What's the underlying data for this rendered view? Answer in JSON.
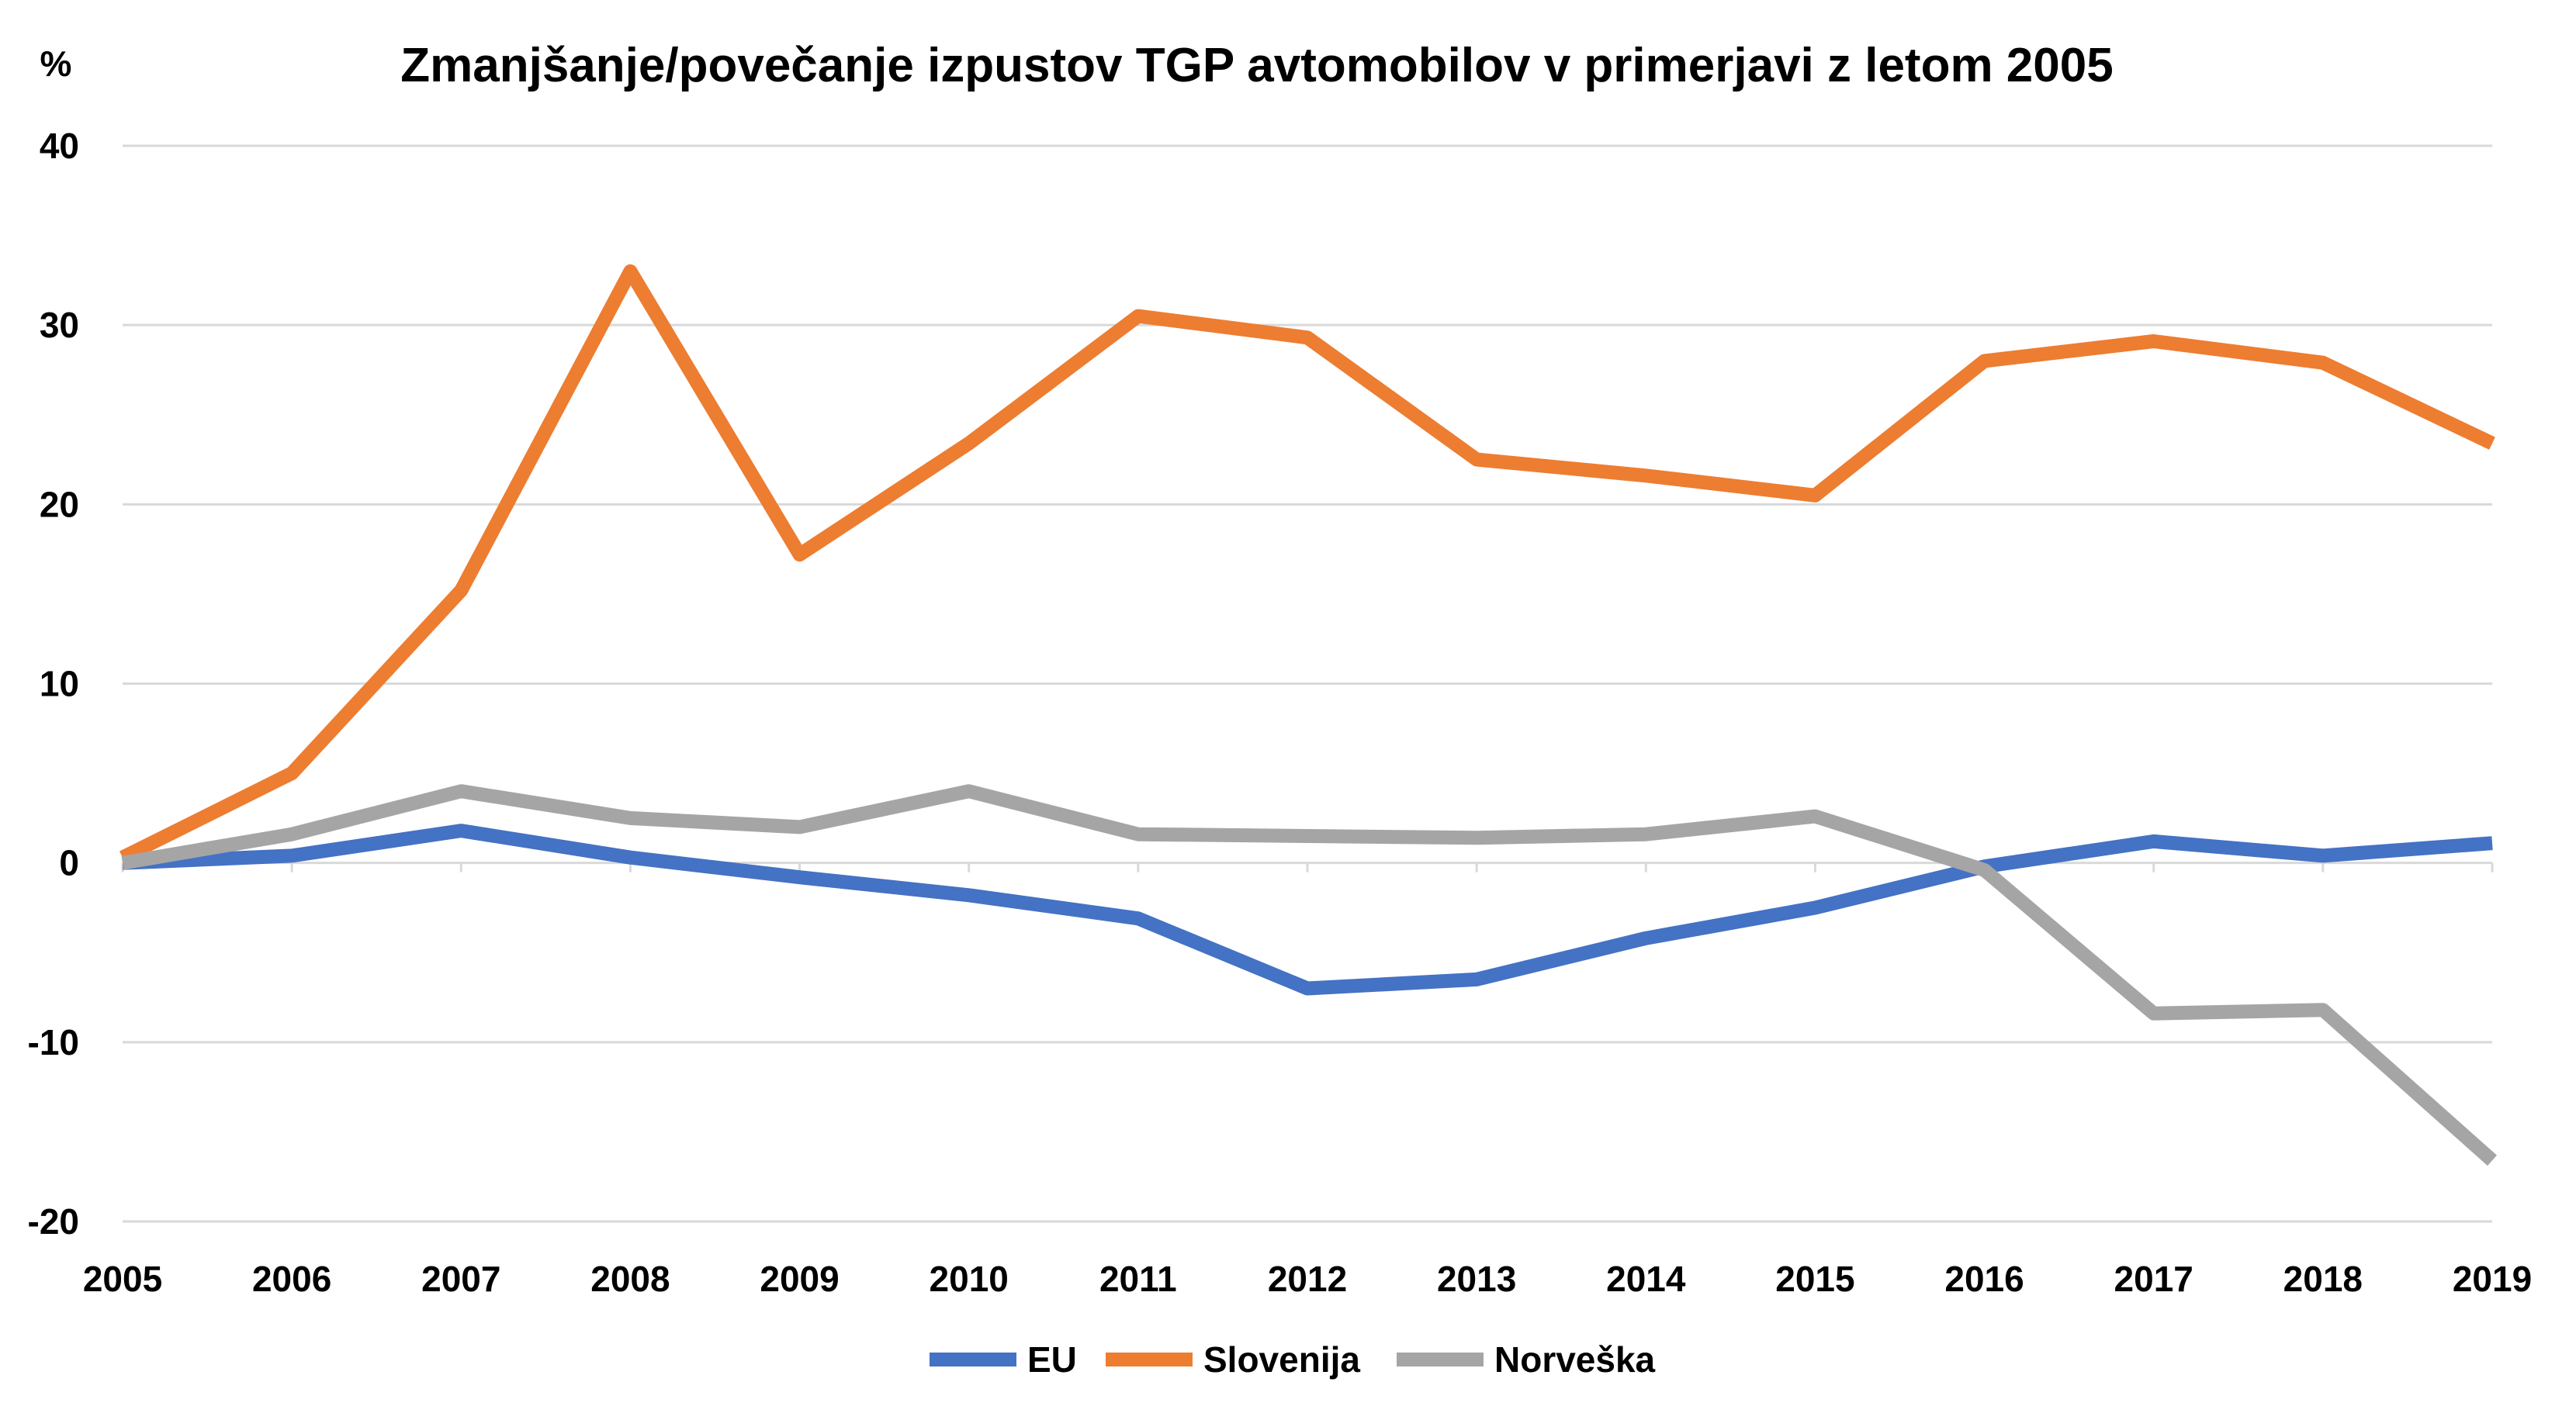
{
  "chart_data": {
    "type": "line",
    "title": "Zmanjšanje/povečanje izpustov TGP avtomobilov v primerjavi z letom 2005",
    "ylabel": "%",
    "xlabel": "",
    "x": [
      "2005",
      "2006",
      "2007",
      "2008",
      "2009",
      "2010",
      "2011",
      "2012",
      "2013",
      "2014",
      "2015",
      "2016",
      "2017",
      "2018",
      "2019"
    ],
    "ylim": [
      -20,
      40
    ],
    "yticks": [
      -20,
      -10,
      0,
      10,
      20,
      30,
      40
    ],
    "ytick_labels": [
      "-20",
      "-10",
      "0",
      "10",
      "20",
      "30",
      "40"
    ],
    "grid": true,
    "legend_position": "bottom",
    "series": [
      {
        "name": "EU",
        "color": "#4472c4",
        "values": [
          0,
          0.4,
          1.8,
          0.3,
          -0.8,
          -1.8,
          -3.1,
          -7.0,
          -6.5,
          -4.2,
          -2.5,
          -0.2,
          1.2,
          0.4,
          1.1
        ]
      },
      {
        "name": "Slovenija",
        "color": "#ed7d31",
        "values": [
          0.3,
          5.0,
          15.2,
          33.0,
          17.2,
          23.4,
          30.5,
          29.3,
          22.5,
          21.6,
          20.5,
          28.0,
          29.1,
          27.9,
          23.4
        ]
      },
      {
        "name": "Norveška",
        "color": "#a5a5a5",
        "values": [
          0,
          1.6,
          4.0,
          2.5,
          2.0,
          4.0,
          1.6,
          1.5,
          1.4,
          1.6,
          2.6,
          -0.4,
          -8.4,
          -8.2,
          -16.6
        ]
      }
    ]
  }
}
